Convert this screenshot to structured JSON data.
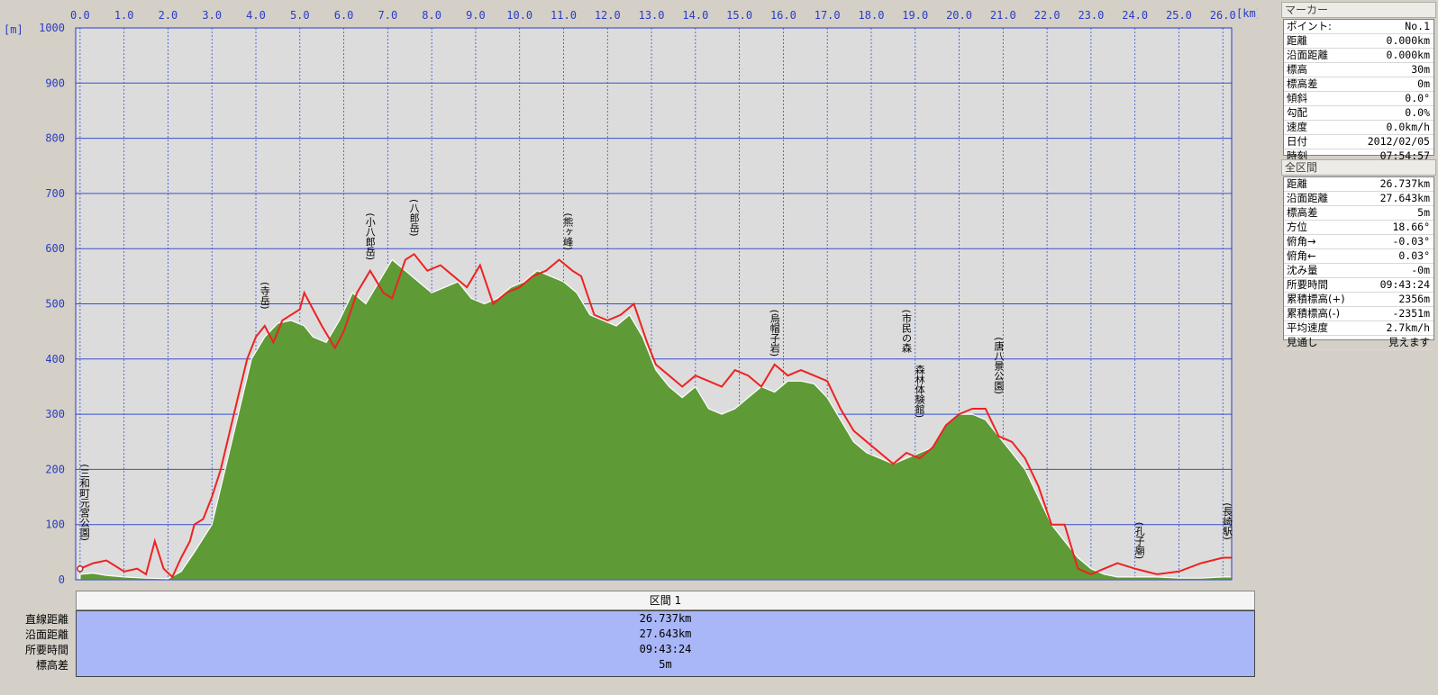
{
  "chart_data": {
    "type": "area",
    "x_unit": "[km]",
    "y_unit": "[m]",
    "x_ticks": [
      "0.0",
      "1.0",
      "2.0",
      "3.0",
      "4.0",
      "5.0",
      "6.0",
      "7.0",
      "8.0",
      "9.0",
      "10.0",
      "11.0",
      "12.0",
      "13.0",
      "14.0",
      "15.0",
      "16.0",
      "17.0",
      "18.0",
      "19.0",
      "20.0",
      "21.0",
      "22.0",
      "23.0",
      "24.0",
      "25.0",
      "26.0"
    ],
    "y_ticks": [
      "0",
      "100",
      "200",
      "300",
      "400",
      "500",
      "600",
      "700",
      "800",
      "900",
      "1000"
    ],
    "xlim": [
      -0.1,
      26.2
    ],
    "ylim": [
      0,
      1000
    ],
    "grid": true,
    "series": [
      {
        "color": "#5e9a36",
        "x": [
          0.0,
          0.3,
          0.6,
          1.0,
          1.5,
          2.0,
          2.3,
          2.6,
          3.0,
          3.3,
          3.6,
          3.9,
          4.2,
          4.5,
          4.8,
          5.1,
          5.3,
          5.6,
          5.9,
          6.2,
          6.5,
          6.8,
          7.1,
          7.4,
          7.7,
          8.0,
          8.3,
          8.6,
          8.9,
          9.2,
          9.5,
          9.8,
          10.1,
          10.4,
          10.7,
          11.0,
          11.3,
          11.6,
          11.9,
          12.2,
          12.5,
          12.8,
          13.1,
          13.4,
          13.7,
          14.0,
          14.3,
          14.6,
          14.9,
          15.2,
          15.5,
          15.8,
          16.1,
          16.4,
          16.7,
          17.0,
          17.3,
          17.6,
          17.9,
          18.2,
          18.5,
          18.8,
          19.1,
          19.4,
          19.7,
          20.0,
          20.3,
          20.6,
          20.9,
          21.2,
          21.5,
          21.8,
          22.1,
          22.4,
          22.7,
          23.0,
          23.3,
          23.6,
          24.0,
          24.5,
          25.0,
          25.5,
          26.0,
          26.2
        ],
        "y": [
          10,
          12,
          8,
          5,
          3,
          2,
          15,
          50,
          100,
          200,
          300,
          400,
          440,
          465,
          470,
          460,
          440,
          430,
          470,
          520,
          500,
          540,
          580,
          560,
          540,
          520,
          530,
          540,
          510,
          500,
          510,
          530,
          540,
          560,
          550,
          540,
          520,
          480,
          470,
          460,
          480,
          440,
          380,
          350,
          330,
          350,
          310,
          300,
          310,
          330,
          350,
          340,
          360,
          360,
          355,
          330,
          290,
          250,
          230,
          220,
          210,
          220,
          230,
          240,
          280,
          300,
          300,
          290,
          260,
          230,
          200,
          150,
          100,
          70,
          40,
          20,
          10,
          5,
          5,
          5,
          3,
          3,
          5,
          5
        ]
      },
      {
        "color": "#ee2222",
        "x": [
          0.0,
          0.3,
          0.6,
          1.0,
          1.3,
          1.5,
          1.7,
          1.9,
          2.1,
          2.3,
          2.5,
          2.6,
          2.8,
          3.0,
          3.2,
          3.5,
          3.8,
          4.0,
          4.2,
          4.4,
          4.6,
          4.8,
          5.0,
          5.1,
          5.3,
          5.5,
          5.8,
          6.0,
          6.3,
          6.6,
          6.9,
          7.1,
          7.4,
          7.6,
          7.9,
          8.2,
          8.5,
          8.8,
          9.1,
          9.4,
          9.7,
          10.0,
          10.3,
          10.6,
          10.9,
          11.2,
          11.4,
          11.7,
          12.0,
          12.3,
          12.6,
          12.9,
          13.1,
          13.4,
          13.7,
          14.0,
          14.3,
          14.6,
          14.9,
          15.2,
          15.5,
          15.8,
          16.1,
          16.4,
          16.7,
          17.0,
          17.3,
          17.6,
          17.9,
          18.2,
          18.5,
          18.8,
          19.1,
          19.4,
          19.7,
          20.0,
          20.3,
          20.6,
          20.9,
          21.2,
          21.5,
          21.8,
          22.1,
          22.4,
          22.7,
          23.0,
          23.3,
          23.6,
          24.0,
          24.5,
          25.0,
          25.5,
          26.0,
          26.2
        ],
        "y": [
          20,
          30,
          35,
          15,
          20,
          10,
          70,
          20,
          5,
          40,
          70,
          100,
          110,
          150,
          200,
          300,
          400,
          440,
          460,
          430,
          470,
          480,
          490,
          520,
          490,
          460,
          420,
          450,
          520,
          560,
          520,
          510,
          580,
          590,
          560,
          570,
          550,
          530,
          570,
          500,
          520,
          530,
          550,
          560,
          580,
          560,
          550,
          480,
          470,
          480,
          500,
          430,
          390,
          370,
          350,
          370,
          360,
          350,
          380,
          370,
          350,
          390,
          370,
          380,
          370,
          360,
          310,
          270,
          250,
          230,
          210,
          230,
          220,
          240,
          280,
          300,
          310,
          310,
          260,
          250,
          220,
          170,
          100,
          100,
          20,
          10,
          20,
          30,
          20,
          10,
          15,
          30,
          40,
          40
        ]
      }
    ],
    "annotations": [
      {
        "text": "(三和町元宮公園)",
        "x": 0.1,
        "y": 210
      },
      {
        "text": "(寺岳)",
        "x": 4.2,
        "y": 540
      },
      {
        "text": "(小八郎岳)",
        "x": 6.6,
        "y": 665
      },
      {
        "text": "(八郎岳)",
        "x": 7.6,
        "y": 690
      },
      {
        "text": "(熊ヶ峰)",
        "x": 11.1,
        "y": 665
      },
      {
        "text": "(烏帽子岩)",
        "x": 15.8,
        "y": 490
      },
      {
        "text": "(市民の森",
        "x": 18.8,
        "y": 490
      },
      {
        "text": "森林体験館)",
        "x": 19.1,
        "y": 390
      },
      {
        "text": "(唐八景公園)",
        "x": 20.9,
        "y": 440
      },
      {
        "text": "(孔子廟)",
        "x": 24.1,
        "y": 105
      },
      {
        "text": "(長崎駅)",
        "x": 26.1,
        "y": 140
      }
    ]
  },
  "summary": {
    "labels": [
      "直線距離",
      "沿面距離",
      "所要時間",
      "標高差"
    ],
    "segment_title": "区間 1",
    "values": [
      "26.737km",
      "27.643km",
      "09:43:24",
      "5m"
    ]
  },
  "marker_panel": {
    "title": "マーカー",
    "rows": [
      {
        "k": "ポイント:",
        "v": "No.1"
      },
      {
        "k": "距離",
        "v": "0.000km"
      },
      {
        "k": "沿面距離",
        "v": "0.000km"
      },
      {
        "k": "標高",
        "v": "30m"
      },
      {
        "k": "標高差",
        "v": "0m"
      },
      {
        "k": "傾斜",
        "v": "0.0°"
      },
      {
        "k": "勾配",
        "v": "0.0%"
      },
      {
        "k": "速度",
        "v": "0.0km/h"
      },
      {
        "k": "日付",
        "v": "2012/02/05"
      },
      {
        "k": "時刻",
        "v": "07:54:57"
      }
    ]
  },
  "total_panel": {
    "title": "全区間",
    "rows": [
      {
        "k": "距離",
        "v": "26.737km"
      },
      {
        "k": "沿面距離",
        "v": "27.643km"
      },
      {
        "k": "標高差",
        "v": "5m"
      },
      {
        "k": "方位",
        "v": "18.66°"
      },
      {
        "k": "俯角→",
        "v": "-0.03°"
      },
      {
        "k": "俯角←",
        "v": "0.03°"
      },
      {
        "k": "沈み量",
        "v": "-0m"
      },
      {
        "k": "所要時間",
        "v": "09:43:24"
      },
      {
        "k": "累積標高(+)",
        "v": "2356m"
      },
      {
        "k": "累積標高(-)",
        "v": "-2351m"
      },
      {
        "k": "平均速度",
        "v": "2.7km/h"
      },
      {
        "k": "見通し",
        "v": "見えます"
      }
    ]
  }
}
